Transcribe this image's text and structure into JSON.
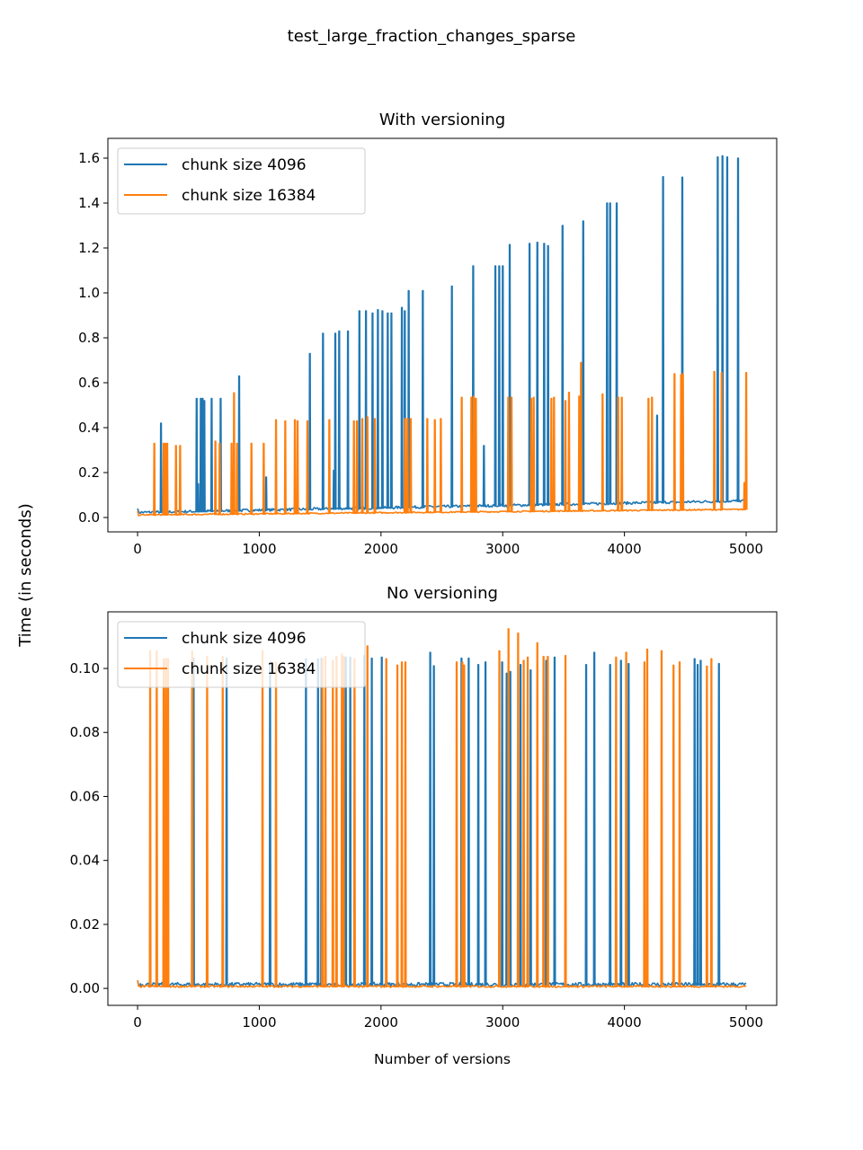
{
  "suptitle": "test_large_fraction_changes_sparse",
  "shared_ylabel": "Time (in seconds)",
  "colors": {
    "chunk_4096": "#1f77b4",
    "chunk_16384": "#ff7f0e"
  },
  "chart_data": [
    {
      "type": "line",
      "title": "With versioning",
      "xlabel": "",
      "xlim": [
        -244,
        5251
      ],
      "ylim": [
        -0.064,
        1.688
      ],
      "xticks": [
        "0",
        "1000",
        "2000",
        "3000",
        "4000",
        "5000"
      ],
      "yticks": [
        "0.0",
        "0.2",
        "0.4",
        "0.6",
        "0.8",
        "1.0",
        "1.2",
        "1.4",
        "1.6"
      ],
      "legend": "top-left",
      "grid": false,
      "series": [
        {
          "name": "chunk size 4096",
          "color": "#1f77b4",
          "baseline": [
            [
              0,
              0.02
            ],
            [
              5000,
              0.072
            ]
          ],
          "spikes": [
            [
              190,
              0.42
            ],
            [
              483,
              0.53
            ],
            [
              495,
              0.15
            ],
            [
              517,
              0.53
            ],
            [
              532,
              0.53
            ],
            [
              546,
              0.52
            ],
            [
              606,
              0.53
            ],
            [
              680,
              0.53
            ],
            [
              832,
              0.63
            ],
            [
              1054,
              0.18
            ],
            [
              1413,
              0.73
            ],
            [
              1521,
              0.82
            ],
            [
              1610,
              0.21
            ],
            [
              1622,
              0.82
            ],
            [
              1654,
              0.83
            ],
            [
              1726,
              0.83
            ],
            [
              1820,
              0.92
            ],
            [
              1874,
              0.92
            ],
            [
              1928,
              0.91
            ],
            [
              1972,
              0.925
            ],
            [
              2009,
              0.92
            ],
            [
              2053,
              0.91
            ],
            [
              2083,
              0.91
            ],
            [
              2169,
              0.935
            ],
            [
              2193,
              0.92
            ],
            [
              2225,
              1.01
            ],
            [
              2341,
              1.01
            ],
            [
              2580,
              1.03
            ],
            [
              2755,
              1.12
            ],
            [
              2843,
              0.32
            ],
            [
              2937,
              1.12
            ],
            [
              2969,
              1.12
            ],
            [
              2998,
              1.12
            ],
            [
              3055,
              1.215
            ],
            [
              3218,
              1.22
            ],
            [
              3282,
              1.225
            ],
            [
              3338,
              1.22
            ],
            [
              3370,
              1.21
            ],
            [
              3489,
              1.3
            ],
            [
              3659,
              1.32
            ],
            [
              3855,
              1.4
            ],
            [
              3880,
              1.4
            ],
            [
              3934,
              1.4
            ],
            [
              4266,
              0.455
            ],
            [
              4315,
              1.517
            ],
            [
              4473,
              1.515
            ],
            [
              4764,
              1.605
            ],
            [
              4803,
              1.61
            ],
            [
              4842,
              1.605
            ],
            [
              4931,
              1.6
            ]
          ]
        },
        {
          "name": "chunk size 16384",
          "color": "#ff7f0e",
          "baseline": [
            [
              0,
              0.01
            ],
            [
              5000,
              0.035
            ]
          ],
          "spikes": [
            [
              135,
              0.33
            ],
            [
              212,
              0.33
            ],
            [
              224,
              0.33
            ],
            [
              241,
              0.33
            ],
            [
              313,
              0.32
            ],
            [
              347,
              0.32
            ],
            [
              637,
              0.34
            ],
            [
              672,
              0.33
            ],
            [
              770,
              0.33
            ],
            [
              790,
              0.555
            ],
            [
              815,
              0.33
            ],
            [
              933,
              0.33
            ],
            [
              1034,
              0.33
            ],
            [
              1135,
              0.435
            ],
            [
              1211,
              0.43
            ],
            [
              1290,
              0.435
            ],
            [
              1312,
              0.43
            ],
            [
              1393,
              0.43
            ],
            [
              1573,
              0.435
            ],
            [
              1775,
              0.43
            ],
            [
              1800,
              0.43
            ],
            [
              1844,
              0.44
            ],
            [
              1886,
              0.448
            ],
            [
              1947,
              0.44
            ],
            [
              2193,
              0.44
            ],
            [
              2215,
              0.44
            ],
            [
              2242,
              0.44
            ],
            [
              2378,
              0.44
            ],
            [
              2440,
              0.435
            ],
            [
              2489,
              0.44
            ],
            [
              2661,
              0.535
            ],
            [
              2740,
              0.535
            ],
            [
              2760,
              0.54
            ],
            [
              2777,
              0.53
            ],
            [
              3043,
              0.535
            ],
            [
              3070,
              0.535
            ],
            [
              3232,
              0.53
            ],
            [
              3252,
              0.535
            ],
            [
              3397,
              0.53
            ],
            [
              3419,
              0.535
            ],
            [
              3513,
              0.52
            ],
            [
              3542,
              0.557
            ],
            [
              3626,
              0.54
            ],
            [
              3641,
              0.69
            ],
            [
              3818,
              0.55
            ],
            [
              3946,
              0.535
            ],
            [
              3976,
              0.535
            ],
            [
              4195,
              0.53
            ],
            [
              4224,
              0.535
            ],
            [
              4409,
              0.64
            ],
            [
              4463,
              0.635
            ],
            [
              4478,
              0.64
            ],
            [
              4736,
              0.65
            ],
            [
              4796,
              0.645
            ],
            [
              4983,
              0.155
            ],
            [
              4998,
              0.645
            ]
          ]
        }
      ]
    },
    {
      "type": "line",
      "title": "No versioning",
      "xlabel": "Number of versions",
      "xlim": [
        -244,
        5251
      ],
      "ylim": [
        -0.0053,
        0.1177
      ],
      "xticks": [
        "0",
        "1000",
        "2000",
        "3000",
        "4000",
        "5000"
      ],
      "yticks": [
        "0.00",
        "0.02",
        "0.04",
        "0.06",
        "0.08",
        "0.10"
      ],
      "legend": "top-left",
      "grid": false,
      "series": [
        {
          "name": "chunk size 4096",
          "color": "#1f77b4",
          "baseline": [
            [
              0,
              0.001
            ],
            [
              5000,
              0.001
            ]
          ],
          "spikes": [
            [
              458,
              0.1032
            ],
            [
              729,
              0.1032
            ],
            [
              1086,
              0.102
            ],
            [
              1381,
              0.103
            ],
            [
              1480,
              0.103
            ],
            [
              1509,
              0.1032
            ],
            [
              1708,
              0.1035
            ],
            [
              1745,
              0.1035
            ],
            [
              1861,
              0.104
            ],
            [
              1922,
              0.1032
            ],
            [
              2004,
              0.1035
            ],
            [
              2402,
              0.105
            ],
            [
              2432,
              0.1008
            ],
            [
              2659,
              0.1032
            ],
            [
              2718,
              0.1032
            ],
            [
              2797,
              0.1012
            ],
            [
              2856,
              0.102
            ],
            [
              2993,
              0.102
            ],
            [
              3030,
              0.0985
            ],
            [
              3060,
              0.099
            ],
            [
              3144,
              0.1012
            ],
            [
              3227,
              0.0995
            ],
            [
              3355,
              0.1025
            ],
            [
              3424,
              0.1035
            ],
            [
              3683,
              0.1012
            ],
            [
              3750,
              0.105
            ],
            [
              3880,
              0.1012
            ],
            [
              3969,
              0.1025
            ],
            [
              4032,
              0.1015
            ],
            [
              4574,
              0.103
            ],
            [
              4599,
              0.1012
            ],
            [
              4624,
              0.1025
            ],
            [
              4774,
              0.1015
            ]
          ]
        },
        {
          "name": "chunk size 16384",
          "color": "#ff7f0e",
          "baseline": [
            [
              0,
              0.0005
            ],
            [
              5000,
              0.0005
            ]
          ],
          "spikes": [
            [
              101,
              0.1055
            ],
            [
              155,
              0.1055
            ],
            [
              212,
              0.103
            ],
            [
              230,
              0.103
            ],
            [
              248,
              0.103
            ],
            [
              446,
              0.1055
            ],
            [
              569,
              0.1037
            ],
            [
              697,
              0.1037
            ],
            [
              1024,
              0.1055
            ],
            [
              1135,
              0.102
            ],
            [
              1516,
              0.103
            ],
            [
              1541,
              0.1037
            ],
            [
              1602,
              0.1025
            ],
            [
              1632,
              0.1037
            ],
            [
              1676,
              0.1045
            ],
            [
              1690,
              0.1037
            ],
            [
              1780,
              0.103
            ],
            [
              1886,
              0.107
            ],
            [
              2041,
              0.103
            ],
            [
              2132,
              0.101
            ],
            [
              2169,
              0.102
            ],
            [
              2198,
              0.102
            ],
            [
              2619,
              0.102
            ],
            [
              2666,
              0.102
            ],
            [
              2681,
              0.101
            ],
            [
              2970,
              0.1055
            ],
            [
              3045,
              0.1124
            ],
            [
              3124,
              0.111
            ],
            [
              3170,
              0.1025
            ],
            [
              3203,
              0.1035
            ],
            [
              3282,
              0.108
            ],
            [
              3333,
              0.1037
            ],
            [
              3368,
              0.1037
            ],
            [
              3513,
              0.104
            ],
            [
              3929,
              0.1035
            ],
            [
              4012,
              0.105
            ],
            [
              4162,
              0.102
            ],
            [
              4185,
              0.106
            ],
            [
              4303,
              0.1055
            ],
            [
              4401,
              0.101
            ],
            [
              4451,
              0.102
            ],
            [
              4675,
              0.1007
            ],
            [
              4712,
              0.103
            ]
          ]
        }
      ]
    }
  ]
}
